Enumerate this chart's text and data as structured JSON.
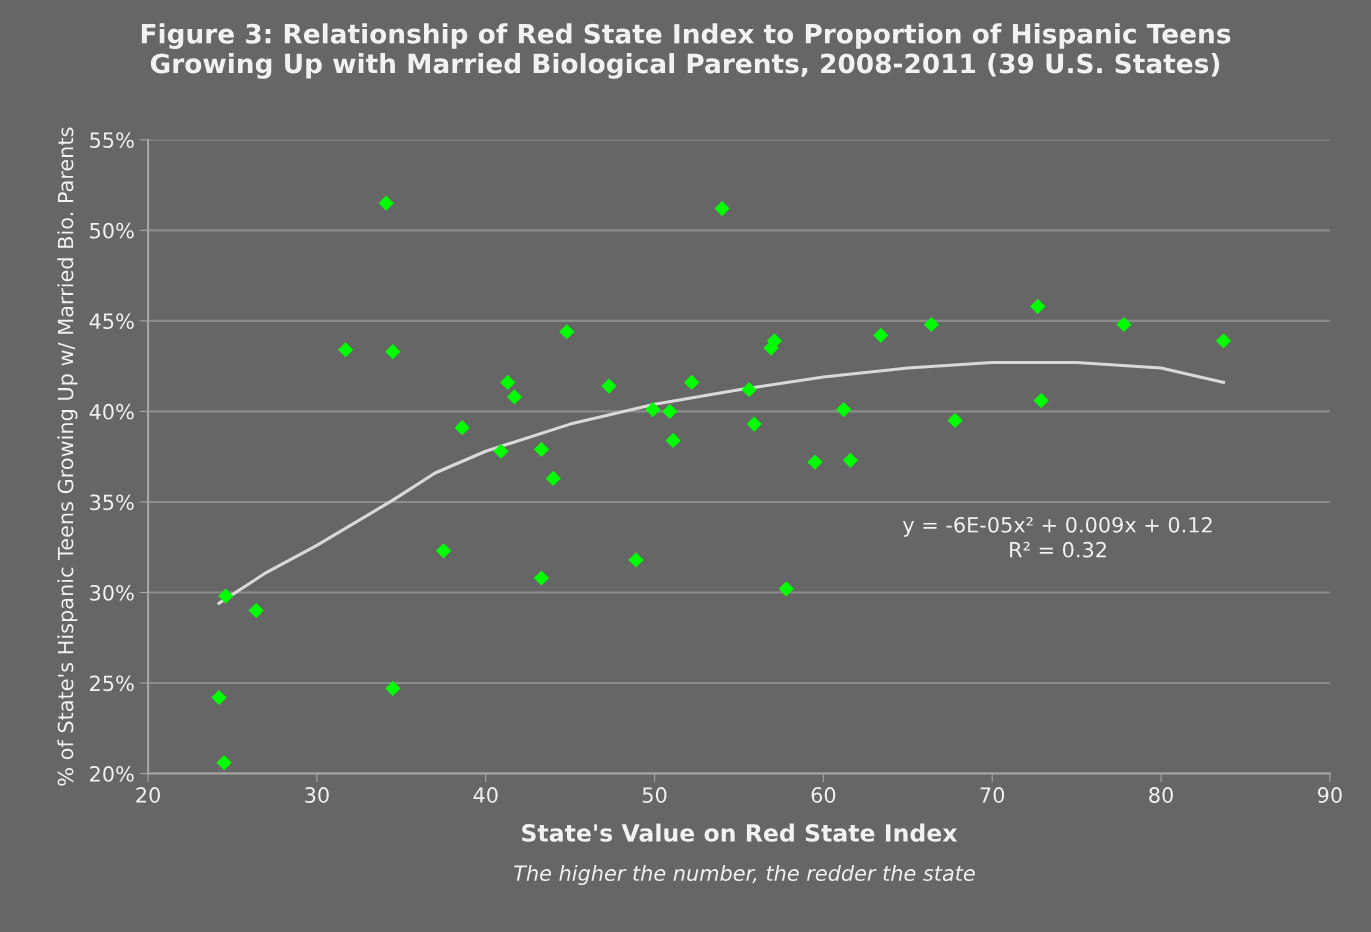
{
  "chart_data": {
    "type": "scatter",
    "title": "Figure 3: Relationship of Red State Index to Proportion of Hispanic Teens\nGrowing Up with Married Biological Parents, 2008-2011 (39 U.S. States)",
    "xlabel": "State's Value on Red State Index",
    "ylabel": "% of State's Hispanic Teens Growing Up w/ Married Bio. Parents",
    "annotations": [
      "The higher the number, the redder the state",
      "y = -6E-05x² + 0.009x + 0.12\nR² = 0.32"
    ],
    "series": [
      {
        "color": "#00ff00",
        "marker": "diamond",
        "x": [
          24.2,
          24.5,
          24.6,
          26.4,
          31.7,
          34.1,
          34.5,
          34.5,
          37.5,
          38.6,
          40.9,
          41.3,
          41.7,
          43.3,
          43.3,
          44.0,
          44.8,
          47.3,
          48.9,
          49.9,
          50.9,
          51.1,
          52.2,
          54.0,
          55.6,
          55.9,
          57.8,
          56.9,
          57.1,
          59.5,
          61.2,
          61.6,
          63.4,
          66.4,
          67.8,
          72.7,
          72.9,
          77.8,
          83.7
        ],
        "values": [
          24.2,
          20.6,
          29.8,
          29.0,
          43.4,
          51.5,
          43.3,
          24.7,
          32.3,
          39.1,
          37.8,
          41.6,
          40.8,
          37.9,
          30.8,
          36.3,
          44.4,
          41.4,
          31.8,
          40.1,
          40.0,
          38.4,
          41.6,
          51.2,
          41.2,
          39.3,
          30.2,
          43.5,
          43.9,
          37.2,
          40.1,
          37.3,
          44.2,
          44.8,
          39.5,
          45.8,
          40.6,
          44.8,
          43.9
        ]
      },
      {
        "type": "line",
        "color": "#d9d9d9",
        "marker": "none",
        "line_style": "solid",
        "x": [
          24.2,
          27,
          30,
          34.5,
          37,
          40,
          45,
          50,
          55,
          60,
          65,
          70,
          75,
          80,
          83.7
        ],
        "values": [
          29.4,
          31.1,
          32.6,
          35.1,
          36.6,
          37.8,
          39.3,
          40.4,
          41.2,
          41.9,
          42.4,
          42.7,
          42.7,
          42.4,
          41.6
        ]
      }
    ],
    "xlim": [
      20,
      90
    ],
    "xticks": [
      20,
      30,
      40,
      50,
      60,
      70,
      80,
      90
    ],
    "ylim": [
      20,
      55
    ],
    "yticks": [
      {
        "value": 20,
        "label": "20%"
      },
      {
        "value": 25,
        "label": "25%"
      },
      {
        "value": 30,
        "label": "30%"
      },
      {
        "value": 35,
        "label": "35%"
      },
      {
        "value": 40,
        "label": "40%"
      },
      {
        "value": 45,
        "label": "45%"
      },
      {
        "value": 50,
        "label": "50%"
      },
      {
        "value": 55,
        "label": "55%"
      }
    ],
    "grid": "y",
    "legend": false
  }
}
